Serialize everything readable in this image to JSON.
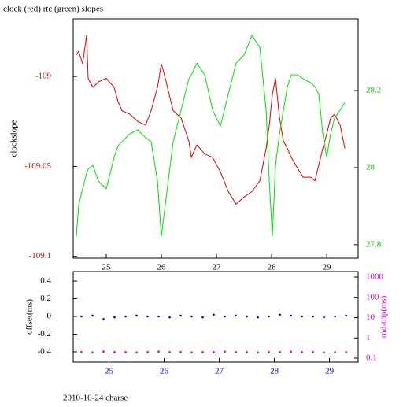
{
  "chart_data": [
    {
      "type": "line",
      "title": "clock (red) rtc (green) slopes",
      "ylabel": "clockslope",
      "x": [
        24.457,
        24.5,
        24.571,
        24.643,
        24.671,
        24.757,
        24.857,
        25.0,
        25.143,
        25.214,
        25.286,
        25.429,
        25.571,
        25.714,
        25.814,
        25.929,
        26.0,
        26.071,
        26.214,
        26.357,
        26.5,
        26.543,
        26.643,
        26.786,
        26.929,
        27.071,
        27.214,
        27.357,
        27.5,
        27.643,
        27.786,
        27.9,
        27.957,
        28.014,
        28.071,
        28.143,
        28.214,
        28.286,
        28.357,
        28.471,
        28.571,
        28.714,
        28.786,
        28.857,
        28.929,
        29.0,
        29.071,
        29.143,
        29.243,
        29.329
      ],
      "series": [
        {
          "color": "#e00000",
          "values": [
            -108.988,
            -108.986,
            -108.993,
            -108.977,
            -109.001,
            -109.006,
            -109.003,
            -109.001,
            -109.006,
            -109.014,
            -109.019,
            -109.021,
            -109.025,
            -109.027,
            -109.019,
            -109.006,
            -108.993,
            -109.001,
            -109.019,
            -109.023,
            -109.036,
            -109.045,
            -109.038,
            -109.043,
            -109.045,
            -109.053,
            -109.064,
            -109.071,
            -109.067,
            -109.064,
            -109.058,
            -109.04,
            -109.027,
            -109.01,
            -109.001,
            -109.023,
            -109.036,
            -109.04,
            -109.045,
            -109.051,
            -109.056,
            -109.056,
            -109.058,
            -109.049,
            -109.04,
            -109.032,
            -109.023,
            -109.021,
            -109.027,
            -109.04
          ]
        },
        {
          "color": "#00e000",
          "axis": "y2",
          "values": [
            27.822,
            27.904,
            27.945,
            27.986,
            27.996,
            28.006,
            27.965,
            27.945,
            28.027,
            28.057,
            28.067,
            28.088,
            28.098,
            28.078,
            28.067,
            27.965,
            27.822,
            27.904,
            28.067,
            28.149,
            28.231,
            28.241,
            28.271,
            28.241,
            28.149,
            28.108,
            28.19,
            28.271,
            28.292,
            28.343,
            28.312,
            28.149,
            27.965,
            27.822,
            28.006,
            28.088,
            28.149,
            28.21,
            28.241,
            28.241,
            28.231,
            28.22,
            28.21,
            28.19,
            28.088,
            28.027,
            28.088,
            28.129,
            28.149,
            28.169
          ]
        }
      ],
      "xlim": [
        24.4,
        29.57
      ],
      "xticks": [
        25,
        26,
        27,
        28,
        29
      ],
      "ylim": [
        -109.101,
        -108.968
      ],
      "yticks": [
        -109,
        -109.05,
        -109.1
      ],
      "y2lim": [
        27.765,
        28.386
      ],
      "y2ticks": [
        28.2,
        28,
        27.8
      ],
      "xcolor": "#000000",
      "ycolor": "#e00000",
      "y2color": "#00c000"
    },
    {
      "type": "scatter",
      "ylabel": "offset(ms)",
      "y2label": "rnd-trip(ms)",
      "caption": "2010-10-24 charse",
      "x": [
        24.5,
        24.7,
        24.9,
        25.1,
        25.3,
        25.5,
        25.7,
        25.9,
        26.1,
        26.3,
        26.5,
        26.7,
        26.9,
        27.1,
        27.3,
        27.5,
        27.7,
        27.9,
        28.1,
        28.3,
        28.5,
        28.7,
        28.9,
        29.1,
        29.3
      ],
      "series": [
        {
          "color": "#0000d0",
          "values": [
            0,
            0.01,
            -0.03,
            -0.01,
            0,
            0.01,
            0,
            0,
            -0.01,
            0.01,
            0,
            -0.01,
            0.02,
            0,
            0.01,
            0,
            -0.01,
            0,
            0.02,
            0.01,
            0,
            0,
            -0.01,
            0,
            0.01
          ]
        },
        {
          "color": "#e000e0",
          "axis": "y2",
          "values": [
            0.2,
            0.19,
            0.21,
            0.2,
            0.2,
            0.19,
            0.2,
            0.21,
            0.2,
            0.2,
            0.19,
            0.2,
            0.2,
            0.21,
            0.2,
            0.2,
            0.19,
            0.2,
            0.2,
            0.21,
            0.2,
            0.2,
            0.19,
            0.2,
            0.2
          ]
        }
      ],
      "xlim": [
        24.35,
        29.52
      ],
      "xticks": [
        25,
        26,
        27,
        28,
        29
      ],
      "ylim": [
        -0.516,
        0.507
      ],
      "yticks": [
        0.4,
        0.2,
        0,
        -0.2,
        -0.4
      ],
      "y2lim": [
        0.064,
        1870
      ],
      "y2ticks": [
        1000,
        100,
        10,
        1,
        0.1
      ],
      "y2log": true,
      "xcolor": "#0000d0",
      "ycolor": "#000000",
      "y2color": "#e000e0"
    }
  ]
}
